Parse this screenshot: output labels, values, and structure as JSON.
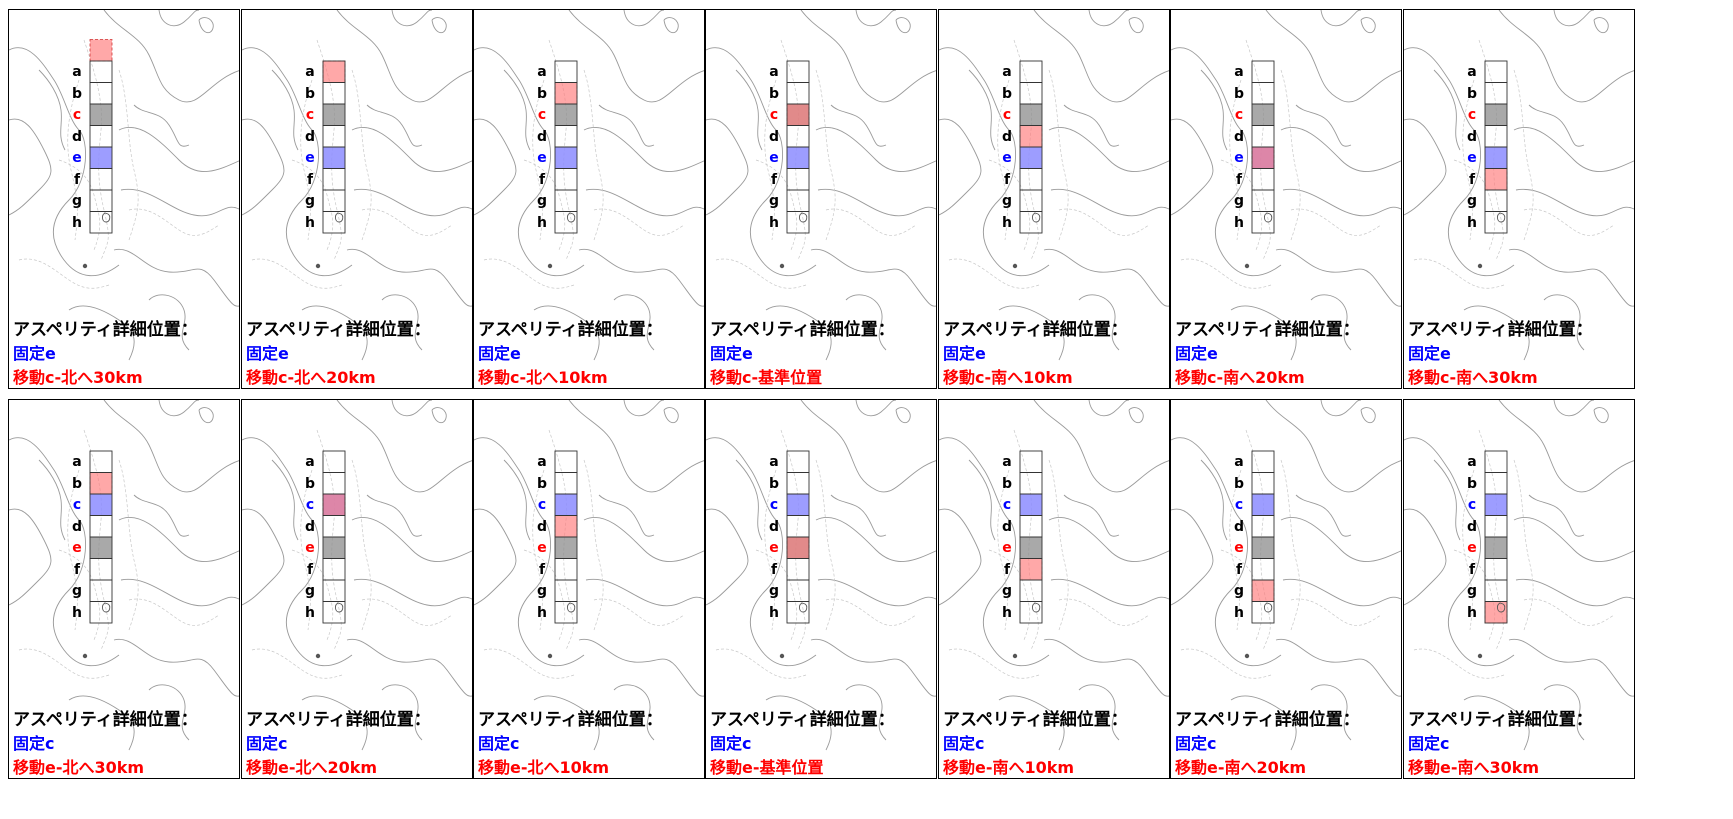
{
  "colors": {
    "fixed": "#0000ff",
    "moving": "#ff0000",
    "fixed_fill": "#8c8cff",
    "moving_fill": "#ff7a7a",
    "reference_fill": "#8c8c8c"
  },
  "segment_letters": [
    "a",
    "b",
    "c",
    "d",
    "e",
    "f",
    "g",
    "h"
  ],
  "panels": [
    {
      "title": "アスペリティ詳細位置：",
      "fixed_label": "固定e",
      "moving_label": "移動c-北へ30km",
      "fixed_segment": "e",
      "moving_segment": "c",
      "shift_km": -30
    },
    {
      "title": "アスペリティ詳細位置：",
      "fixed_label": "固定e",
      "moving_label": "移動c-北へ20km",
      "fixed_segment": "e",
      "moving_segment": "c",
      "shift_km": -20
    },
    {
      "title": "アスペリティ詳細位置：",
      "fixed_label": "固定e",
      "moving_label": "移動c-北へ10km",
      "fixed_segment": "e",
      "moving_segment": "c",
      "shift_km": -10
    },
    {
      "title": "アスペリティ詳細位置：",
      "fixed_label": "固定e",
      "moving_label": "移動c-基準位置",
      "fixed_segment": "e",
      "moving_segment": "c",
      "shift_km": 0
    },
    {
      "title": "アスペリティ詳細位置：",
      "fixed_label": "固定e",
      "moving_label": "移動c-南へ10km",
      "fixed_segment": "e",
      "moving_segment": "c",
      "shift_km": 10
    },
    {
      "title": "アスペリティ詳細位置：",
      "fixed_label": "固定e",
      "moving_label": "移動c-南へ20km",
      "fixed_segment": "e",
      "moving_segment": "c",
      "shift_km": 20
    },
    {
      "title": "アスペリティ詳細位置：",
      "fixed_label": "固定e",
      "moving_label": "移動c-南へ30km",
      "fixed_segment": "e",
      "moving_segment": "c",
      "shift_km": 30
    },
    {
      "title": "アスペリティ詳細位置：",
      "fixed_label": "固定c",
      "moving_label": "移動e-北へ30km",
      "fixed_segment": "c",
      "moving_segment": "e",
      "shift_km": -30
    },
    {
      "title": "アスペリティ詳細位置：",
      "fixed_label": "固定c",
      "moving_label": "移動e-北へ20km",
      "fixed_segment": "c",
      "moving_segment": "e",
      "shift_km": -20
    },
    {
      "title": "アスペリティ詳細位置：",
      "fixed_label": "固定c",
      "moving_label": "移動e-北へ10km",
      "fixed_segment": "c",
      "moving_segment": "e",
      "shift_km": -10
    },
    {
      "title": "アスペリティ詳細位置：",
      "fixed_label": "固定c",
      "moving_label": "移動e-基準位置",
      "fixed_segment": "c",
      "moving_segment": "e",
      "shift_km": 0
    },
    {
      "title": "アスペリティ詳細位置：",
      "fixed_label": "固定c",
      "moving_label": "移動e-南へ10km",
      "fixed_segment": "c",
      "moving_segment": "e",
      "shift_km": 10
    },
    {
      "title": "アスペリティ詳細位置：",
      "fixed_label": "固定c",
      "moving_label": "移動e-南へ20km",
      "fixed_segment": "c",
      "moving_segment": "e",
      "shift_km": 20
    },
    {
      "title": "アスペリティ詳細位置：",
      "fixed_label": "固定c",
      "moving_label": "移動e-南へ30km",
      "fixed_segment": "c",
      "moving_segment": "e",
      "shift_km": 30
    }
  ]
}
